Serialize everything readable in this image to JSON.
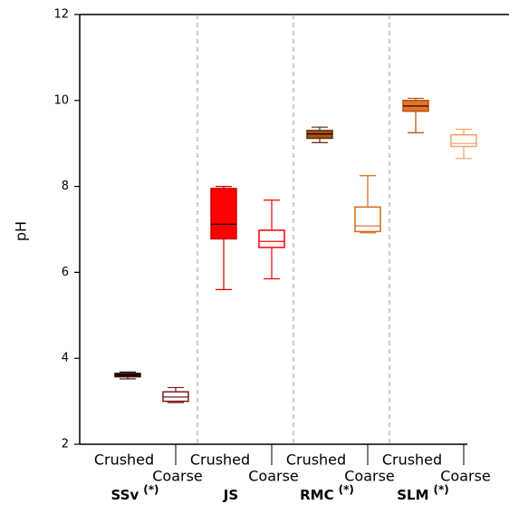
{
  "chart_data": {
    "type": "box",
    "y_label": "pH",
    "ylim": [
      2,
      12
    ],
    "yticks": [
      2,
      4,
      6,
      8,
      10,
      12
    ],
    "groups": [
      {
        "name": "SSv",
        "note": "(*)",
        "boxes": [
          {
            "label": "Crushed",
            "color": "#3a0f0f",
            "fill": "#3a0f0f",
            "whisker_low": 3.52,
            "q1": 3.57,
            "median": 3.61,
            "q3": 3.65,
            "whisker_high": 3.68
          },
          {
            "label": "Coarse",
            "color": "#7a1c1c",
            "fill": "#ffffff",
            "whisker_low": 2.97,
            "q1": 3.0,
            "median": 3.1,
            "q3": 3.22,
            "whisker_high": 3.32
          }
        ]
      },
      {
        "name": "JS",
        "boxes": [
          {
            "label": "Crushed",
            "color": "#cc0000",
            "fill": "#ff0000",
            "whisker_low": 5.6,
            "q1": 6.78,
            "median": 7.12,
            "q3": 7.95,
            "whisker_high": 8.0
          },
          {
            "label": "Coarse",
            "color": "#ff0000",
            "fill": "#ffffff",
            "whisker_low": 5.85,
            "q1": 6.58,
            "median": 6.72,
            "q3": 6.98,
            "whisker_high": 7.68
          }
        ]
      },
      {
        "name": "RMC",
        "note": "(*)",
        "boxes": [
          {
            "label": "Crushed",
            "color": "#5a2a0a",
            "fill": "#b5500a",
            "whisker_low": 9.02,
            "q1": 9.12,
            "median": 9.22,
            "q3": 9.3,
            "whisker_high": 9.38
          },
          {
            "label": "Coarse",
            "color": "#d2691e",
            "fill": "#ffffff",
            "whisker_low": 6.92,
            "q1": 6.95,
            "median": 7.08,
            "q3": 7.52,
            "whisker_high": 8.25
          }
        ]
      },
      {
        "name": "SLM",
        "note": "(*)",
        "boxes": [
          {
            "label": "Crushed",
            "color": "#b5500a",
            "fill": "#e8742a",
            "whisker_low": 9.25,
            "q1": 9.75,
            "median": 9.87,
            "q3": 10.0,
            "whisker_high": 10.05
          },
          {
            "label": "Coarse",
            "color": "#f4a460",
            "fill": "#ffffff",
            "whisker_low": 8.65,
            "q1": 8.93,
            "median": 9.0,
            "q3": 9.2,
            "whisker_high": 9.33
          }
        ]
      }
    ]
  }
}
